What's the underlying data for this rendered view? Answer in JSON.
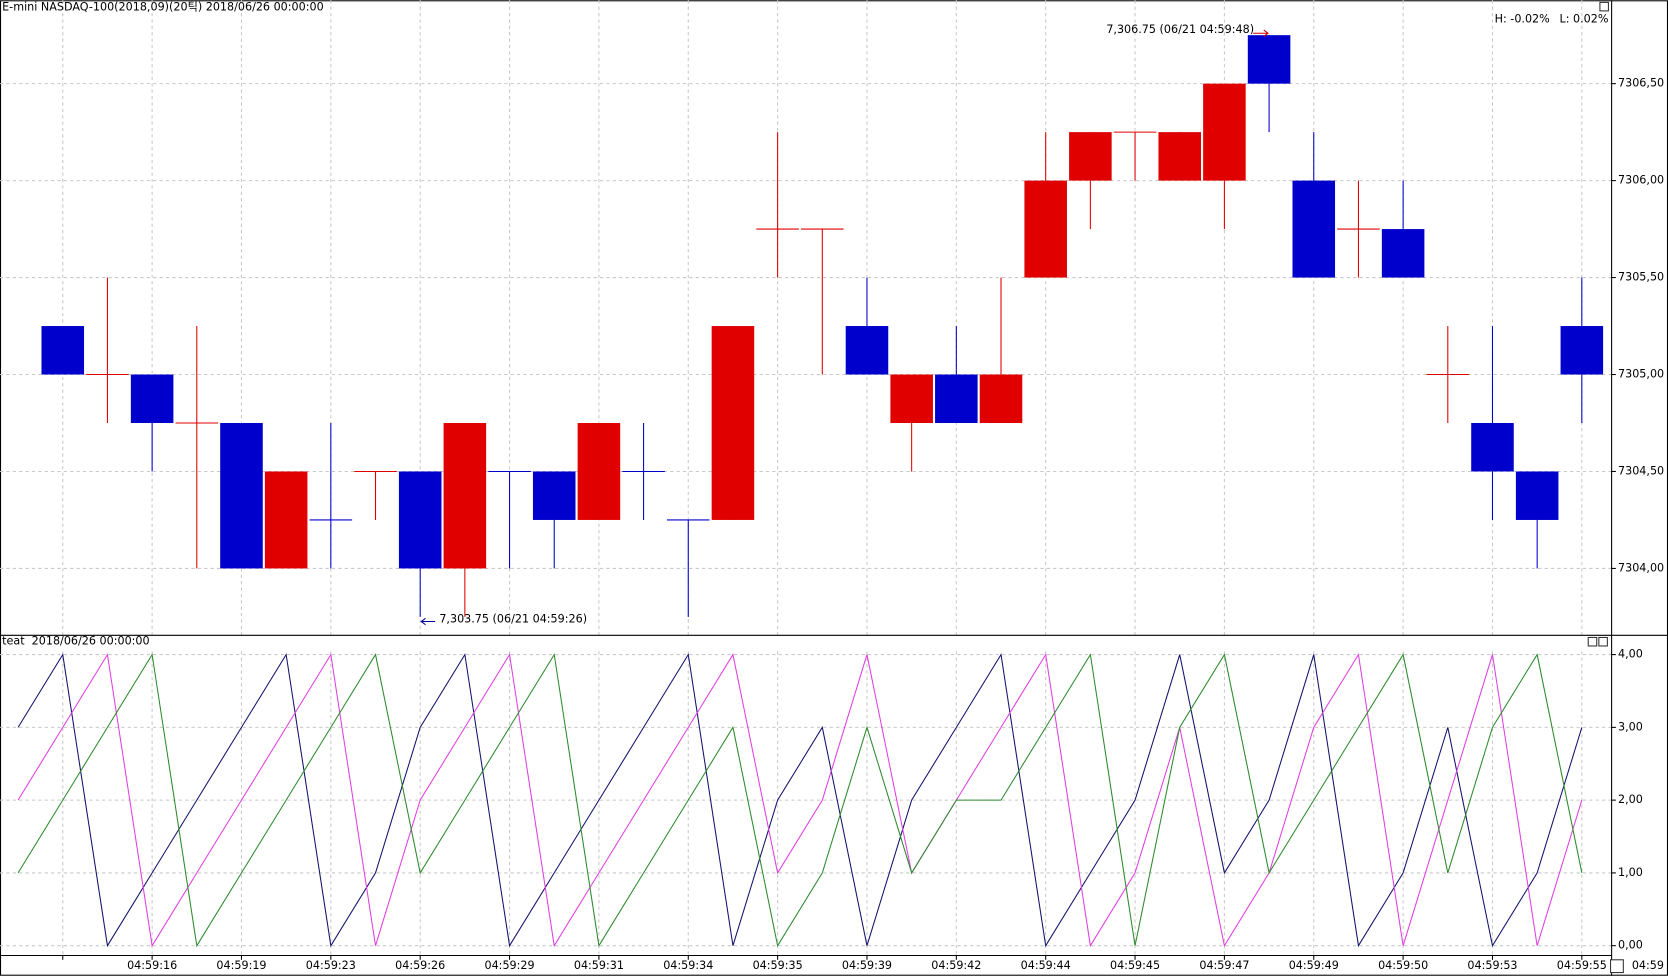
{
  "chart_data": [
    {
      "type": "candlestick",
      "title": "E-mini NASDAQ-100(2018,09)(20틱) 2018/06/26 00:00:00",
      "high_label": {
        "text": "H: -0.02%",
        "color": "#cc0000"
      },
      "low_label": {
        "text": "L: 0.02%",
        "color": "#0000cc"
      },
      "open": [
        null,
        7305.25,
        7305,
        7305,
        7304.75,
        7304.75,
        7304,
        7304.25,
        7304.5,
        7304.5,
        7304,
        7304.5,
        7304.5,
        7304.25,
        7304.5,
        7304.25,
        7304.25,
        7305.75,
        7305.75,
        7305.25,
        7304.75,
        7305,
        7304.75,
        7305.5,
        7306,
        7306.25,
        7306,
        7306,
        7306.75,
        7306,
        7305.75,
        7305.75,
        7305,
        7304.75,
        7304.5,
        7305.25
      ],
      "high": [
        null,
        7305.25,
        7305.5,
        7305,
        7305.25,
        7304.75,
        7304.5,
        7304.75,
        7304.5,
        7304.5,
        7304.75,
        7304.5,
        7304.5,
        7304.75,
        7304.75,
        7304.25,
        7305.25,
        7306.25,
        7305.75,
        7305.5,
        7305,
        7305.25,
        7305.5,
        7306.25,
        7306.25,
        7306.25,
        7306.25,
        7306.5,
        7306.75,
        7306.25,
        7306,
        7306,
        7305.25,
        7305.25,
        7304.5,
        7305.5
      ],
      "low": [
        null,
        7305,
        7304.75,
        7304.5,
        7304,
        7304,
        7304,
        7304,
        7304.25,
        7303.75,
        7303.75,
        7304,
        7304,
        7304.25,
        7304.25,
        7303.75,
        7304.25,
        7305.5,
        7305,
        7305,
        7304.5,
        7304.75,
        7304.75,
        7305.5,
        7305.75,
        7306,
        7306,
        7305.75,
        7306.25,
        7305.5,
        7305.5,
        7305.5,
        7304.75,
        7304.25,
        7304,
        7304.75
      ],
      "close": [
        null,
        7305,
        7305,
        7304.75,
        7304.75,
        7304,
        7304.5,
        7304.25,
        7304.5,
        7304,
        7304.75,
        7304.5,
        7304.25,
        7304.75,
        7304.5,
        7304.25,
        7305.25,
        7305.75,
        7305.75,
        7305,
        7305,
        7304.75,
        7305,
        7306,
        7306.25,
        7306.25,
        7306.25,
        7306.5,
        7306.5,
        7305.5,
        7305.75,
        7305.5,
        7305,
        7304.5,
        7304.25,
        7305
      ],
      "colors": [
        null,
        "#0000cc",
        "#e00000",
        "#0000cc",
        "#e00000",
        "#0000cc",
        "#e00000",
        "#0000cc",
        "#e00000",
        "#0000cc",
        "#e00000",
        "#0000cc",
        "#0000cc",
        "#e00000",
        "#0000cc",
        "#0000cc",
        "#e00000",
        "#e00000",
        "#e00000",
        "#0000cc",
        "#e00000",
        "#0000cc",
        "#e00000",
        "#e00000",
        "#e00000",
        "#e00000",
        "#e00000",
        "#e00000",
        "#0000cc",
        "#0000cc",
        "#e00000",
        "#0000cc",
        "#e00000",
        "#0000cc",
        "#0000cc",
        "#0000cc"
      ],
      "ylim": [
        7303.655,
        7306.93
      ],
      "yticks": [
        {
          "value": 7304,
          "label": "7304,00"
        },
        {
          "value": 7304.5,
          "label": "7304,50"
        },
        {
          "value": 7305,
          "label": "7305,00"
        },
        {
          "value": 7305.5,
          "label": "7305,50"
        },
        {
          "value": 7306,
          "label": "7306,00"
        },
        {
          "value": 7306.5,
          "label": "7306,50"
        }
      ],
      "annotations": [
        {
          "text": "7,306.75 (06/21 04:59:48)",
          "color": "#cc0000"
        },
        {
          "text": "7,303.75 (06/21 04:59:26)",
          "color": "#000099"
        }
      ],
      "grid": true
    },
    {
      "type": "line",
      "title": "teat  2018/06/26 00:00:00",
      "categories": [
        null,
        null,
        null,
        "04:59:16",
        null,
        "04:59:19",
        null,
        "04:59:23",
        null,
        "04:59:26",
        null,
        "04:59:29",
        null,
        "04:59:31",
        null,
        "04:59:34",
        null,
        "04:59:35",
        null,
        "04:59:39",
        null,
        "04:59:42",
        null,
        "04:59:44",
        null,
        "04:59:45",
        null,
        "04:59:47",
        null,
        "04:59:49",
        null,
        "04:59:50",
        null,
        "04:59:53",
        null,
        "04:59:55"
      ],
      "corner_label": "04:59",
      "series": [
        {
          "color": "#14146e",
          "values": [
            3,
            4,
            0,
            1,
            2,
            3,
            4,
            0,
            1,
            3,
            4,
            0,
            1,
            2,
            3,
            4,
            0,
            2,
            3,
            0,
            2,
            3,
            4,
            0,
            1,
            2,
            4,
            1,
            2,
            4,
            0,
            1,
            3,
            0,
            1,
            3
          ]
        },
        {
          "color": "#e040e0",
          "values": [
            2,
            3,
            4,
            0,
            1,
            2,
            3,
            4,
            0,
            2,
            3,
            4,
            0,
            1,
            2,
            3,
            4,
            1,
            2,
            4,
            1,
            2,
            3,
            4,
            0,
            1,
            3,
            0,
            1,
            3,
            4,
            0,
            2,
            4,
            0,
            2
          ]
        },
        {
          "color": "#2e8b2e",
          "values": [
            1,
            2,
            3,
            4,
            0,
            1,
            2,
            3,
            4,
            1,
            2,
            3,
            4,
            0,
            1,
            2,
            3,
            0,
            1,
            3,
            1,
            2,
            2,
            3,
            4,
            0,
            3,
            4,
            1,
            2,
            3,
            4,
            1,
            3,
            4,
            1
          ]
        }
      ],
      "ylim": [
        -0.34,
        4.25
      ],
      "yticks": [
        {
          "value": 0,
          "label": "0,00"
        },
        {
          "value": 1,
          "label": "1,00"
        },
        {
          "value": 2,
          "label": "2,00"
        },
        {
          "value": 3,
          "label": "3,00"
        },
        {
          "value": 4,
          "label": "4,00"
        }
      ],
      "grid": true
    }
  ]
}
